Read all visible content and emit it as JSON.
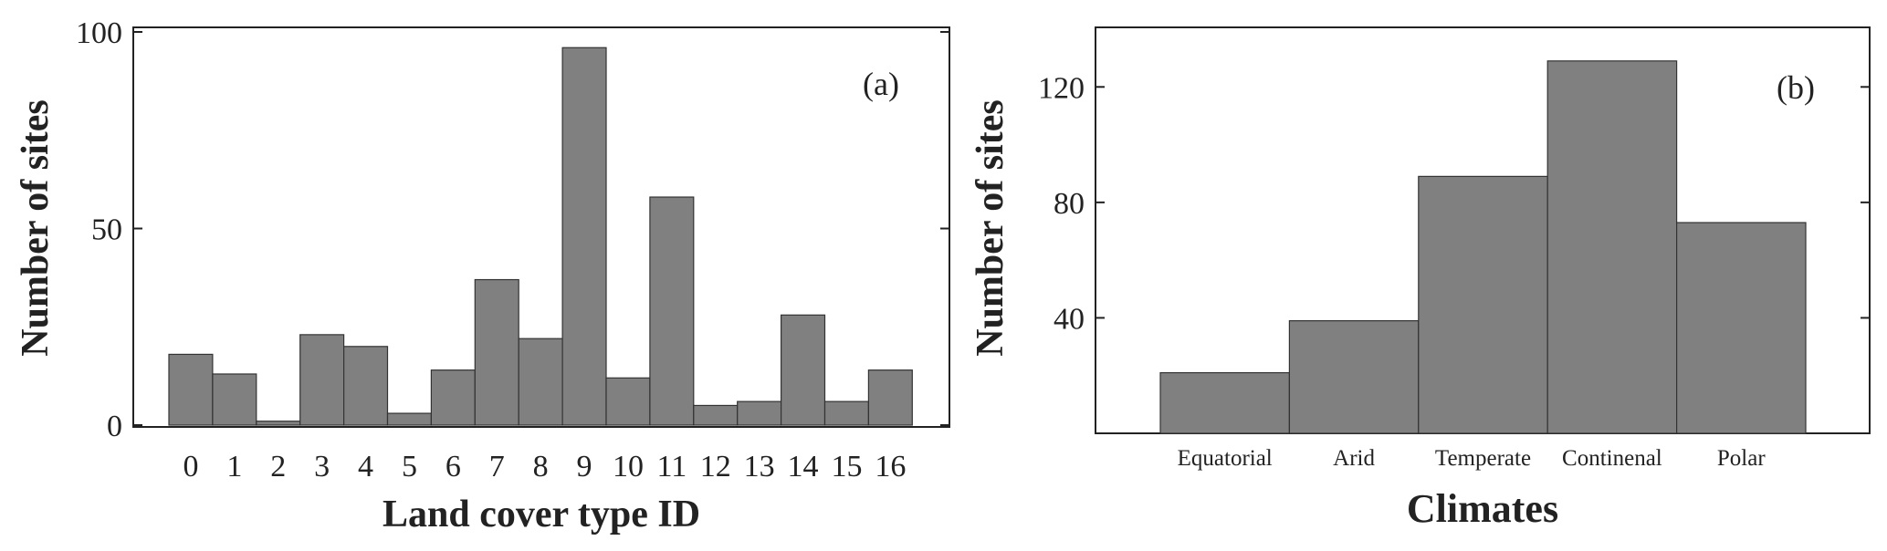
{
  "chart_data": [
    {
      "type": "bar",
      "panel_label": "(a)",
      "xlabel": "Land cover type ID",
      "ylabel": "Number of sites",
      "categories": [
        "0",
        "1",
        "2",
        "3",
        "4",
        "5",
        "6",
        "7",
        "8",
        "9",
        "10",
        "11",
        "12",
        "13",
        "14",
        "15",
        "16"
      ],
      "values": [
        18,
        13,
        1,
        23,
        20,
        3,
        14,
        37,
        22,
        96,
        12,
        58,
        5,
        6,
        28,
        6,
        14
      ],
      "ylim": [
        0,
        100
      ],
      "yticks": [
        0,
        50,
        100
      ],
      "grid": false,
      "bar_color": "#808080"
    },
    {
      "type": "bar",
      "panel_label": "(b)",
      "xlabel": "Climates",
      "ylabel": "Number of sites",
      "categories": [
        "Equatorial",
        "Arid",
        "Temperate",
        "Continenal",
        "Polar"
      ],
      "values": [
        21,
        39,
        89,
        129,
        73
      ],
      "ylim": [
        0,
        140
      ],
      "yticks": [
        40,
        80,
        120
      ],
      "grid": false,
      "bar_color": "#808080"
    }
  ]
}
